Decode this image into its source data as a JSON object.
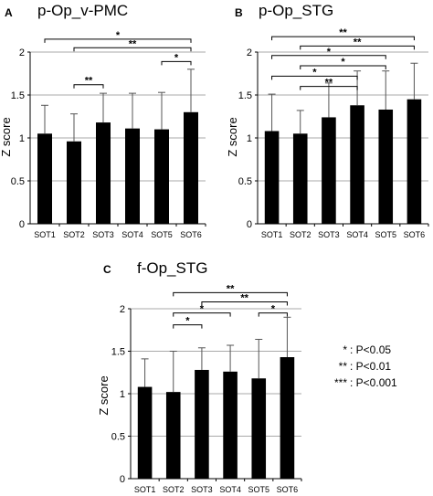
{
  "chart_data": [
    {
      "type": "bar",
      "letter": "A",
      "title": "p-Op_v-PMC",
      "ylabel": "Z score",
      "categories": [
        "SOT1",
        "SOT2",
        "SOT3",
        "SOT4",
        "SOT5",
        "SOT6"
      ],
      "values": [
        1.05,
        0.96,
        1.18,
        1.11,
        1.1,
        1.3
      ],
      "errors": [
        0.33,
        0.32,
        0.34,
        0.41,
        0.43,
        0.5
      ],
      "ylim": [
        0,
        2
      ],
      "yticks": [
        "0",
        "0.5",
        "1",
        "1.5",
        "2"
      ],
      "grid": true,
      "significance": [
        {
          "from": 0,
          "to": 5,
          "label": "*",
          "y": 2.15
        },
        {
          "from": 1,
          "to": 5,
          "label": "**",
          "y": 2.05
        },
        {
          "from": 4,
          "to": 5,
          "label": "*",
          "y": 1.89
        },
        {
          "from": 1,
          "to": 2,
          "label": "**",
          "y": 1.62
        }
      ]
    },
    {
      "type": "bar",
      "letter": "B",
      "title": "p-Op_STG",
      "ylabel": "Z score",
      "categories": [
        "SOT1",
        "SOT2",
        "SOT3",
        "SOT4",
        "SOT5",
        "SOT6"
      ],
      "values": [
        1.08,
        1.05,
        1.24,
        1.38,
        1.33,
        1.45
      ],
      "errors": [
        0.43,
        0.27,
        0.4,
        0.4,
        0.45,
        0.42
      ],
      "ylim": [
        0,
        2
      ],
      "yticks": [
        "0",
        "0.5",
        "1",
        "1.5",
        "2"
      ],
      "grid": true,
      "significance": [
        {
          "from": 0,
          "to": 5,
          "label": "**",
          "y": 2.18
        },
        {
          "from": 1,
          "to": 5,
          "label": "**",
          "y": 2.07
        },
        {
          "from": 0,
          "to": 4,
          "label": "*",
          "y": 1.96
        },
        {
          "from": 1,
          "to": 4,
          "label": "*",
          "y": 1.84
        },
        {
          "from": 0,
          "to": 3,
          "label": "*",
          "y": 1.72
        },
        {
          "from": 1,
          "to": 3,
          "label": "**",
          "y": 1.6
        }
      ]
    },
    {
      "type": "bar",
      "letter": "C",
      "title": "f-Op_STG",
      "ylabel": "Z score",
      "categories": [
        "SOT1",
        "SOT2",
        "SOT3",
        "SOT4",
        "SOT5",
        "SOT6"
      ],
      "values": [
        1.08,
        1.02,
        1.28,
        1.26,
        1.18,
        1.43
      ],
      "errors": [
        0.33,
        0.48,
        0.26,
        0.31,
        0.46,
        0.47
      ],
      "ylim": [
        0,
        2
      ],
      "yticks": [
        "0",
        "0.5",
        "1",
        "1.5",
        "2"
      ],
      "grid": true,
      "significance": [
        {
          "from": 1,
          "to": 5,
          "label": "**",
          "y": 2.19
        },
        {
          "from": 2,
          "to": 5,
          "label": "**",
          "y": 2.08
        },
        {
          "from": 1,
          "to": 3,
          "label": "*",
          "y": 1.95
        },
        {
          "from": 4,
          "to": 5,
          "label": "*",
          "y": 1.95
        },
        {
          "from": 1,
          "to": 2,
          "label": "*",
          "y": 1.81
        }
      ]
    }
  ],
  "legend": [
    {
      "symbol": "*",
      "text": ": P<0.05"
    },
    {
      "symbol": "**",
      "text": ": P<0.01"
    },
    {
      "symbol": "***",
      "text": ": P<0.001"
    }
  ]
}
